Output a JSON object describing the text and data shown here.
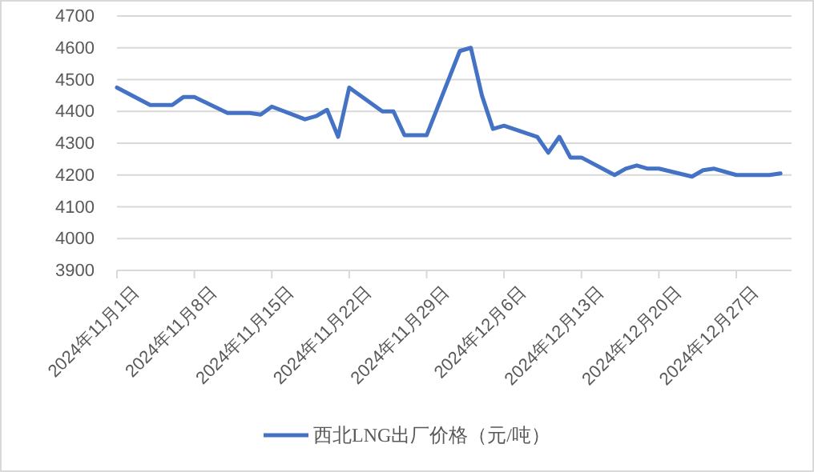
{
  "chart_data": {
    "type": "line",
    "x": [
      "2024-11-01",
      "2024-11-04",
      "2024-11-06",
      "2024-11-07",
      "2024-11-08",
      "2024-11-11",
      "2024-11-13",
      "2024-11-14",
      "2024-11-15",
      "2024-11-18",
      "2024-11-19",
      "2024-11-20",
      "2024-11-21",
      "2024-11-22",
      "2024-11-25",
      "2024-11-26",
      "2024-11-27",
      "2024-11-29",
      "2024-12-02",
      "2024-12-03",
      "2024-12-04",
      "2024-12-05",
      "2024-12-06",
      "2024-12-09",
      "2024-12-10",
      "2024-12-11",
      "2024-12-12",
      "2024-12-13",
      "2024-12-16",
      "2024-12-17",
      "2024-12-18",
      "2024-12-19",
      "2024-12-20",
      "2024-12-23",
      "2024-12-24",
      "2024-12-25",
      "2024-12-27",
      "2024-12-30",
      "2024-12-31"
    ],
    "series": [
      {
        "name": "西北LNG出厂价格（元/吨）",
        "color": "#4472c4",
        "values": [
          4475,
          4420,
          4420,
          4445,
          4445,
          4395,
          4395,
          4390,
          4415,
          4375,
          4385,
          4405,
          4320,
          4475,
          4400,
          4400,
          4325,
          4325,
          4590,
          4600,
          4450,
          4345,
          4355,
          4320,
          4270,
          4320,
          4255,
          4255,
          4200,
          4220,
          4230,
          4220,
          4220,
          4195,
          4215,
          4220,
          4200,
          4200,
          4205
        ]
      }
    ],
    "xlim": [
      "2024-11-01",
      "2025-01-01"
    ],
    "xticks": [
      {
        "value": "2024-11-01",
        "label": "2024年11月1日"
      },
      {
        "value": "2024-11-08",
        "label": "2024年11月8日"
      },
      {
        "value": "2024-11-15",
        "label": "2024年11月15日"
      },
      {
        "value": "2024-11-22",
        "label": "2024年11月22日"
      },
      {
        "value": "2024-11-29",
        "label": "2024年11月29日"
      },
      {
        "value": "2024-12-06",
        "label": "2024年12月6日"
      },
      {
        "value": "2024-12-13",
        "label": "2024年12月13日"
      },
      {
        "value": "2024-12-20",
        "label": "2024年12月20日"
      },
      {
        "value": "2024-12-27",
        "label": "2024年12月27日"
      }
    ],
    "ylim": [
      3900,
      4700
    ],
    "yticks": [
      3900,
      4000,
      4100,
      4200,
      4300,
      4400,
      4500,
      4600,
      4700
    ],
    "grid": "y",
    "legend": "bottom",
    "marker": "none",
    "line_style": "solid"
  }
}
